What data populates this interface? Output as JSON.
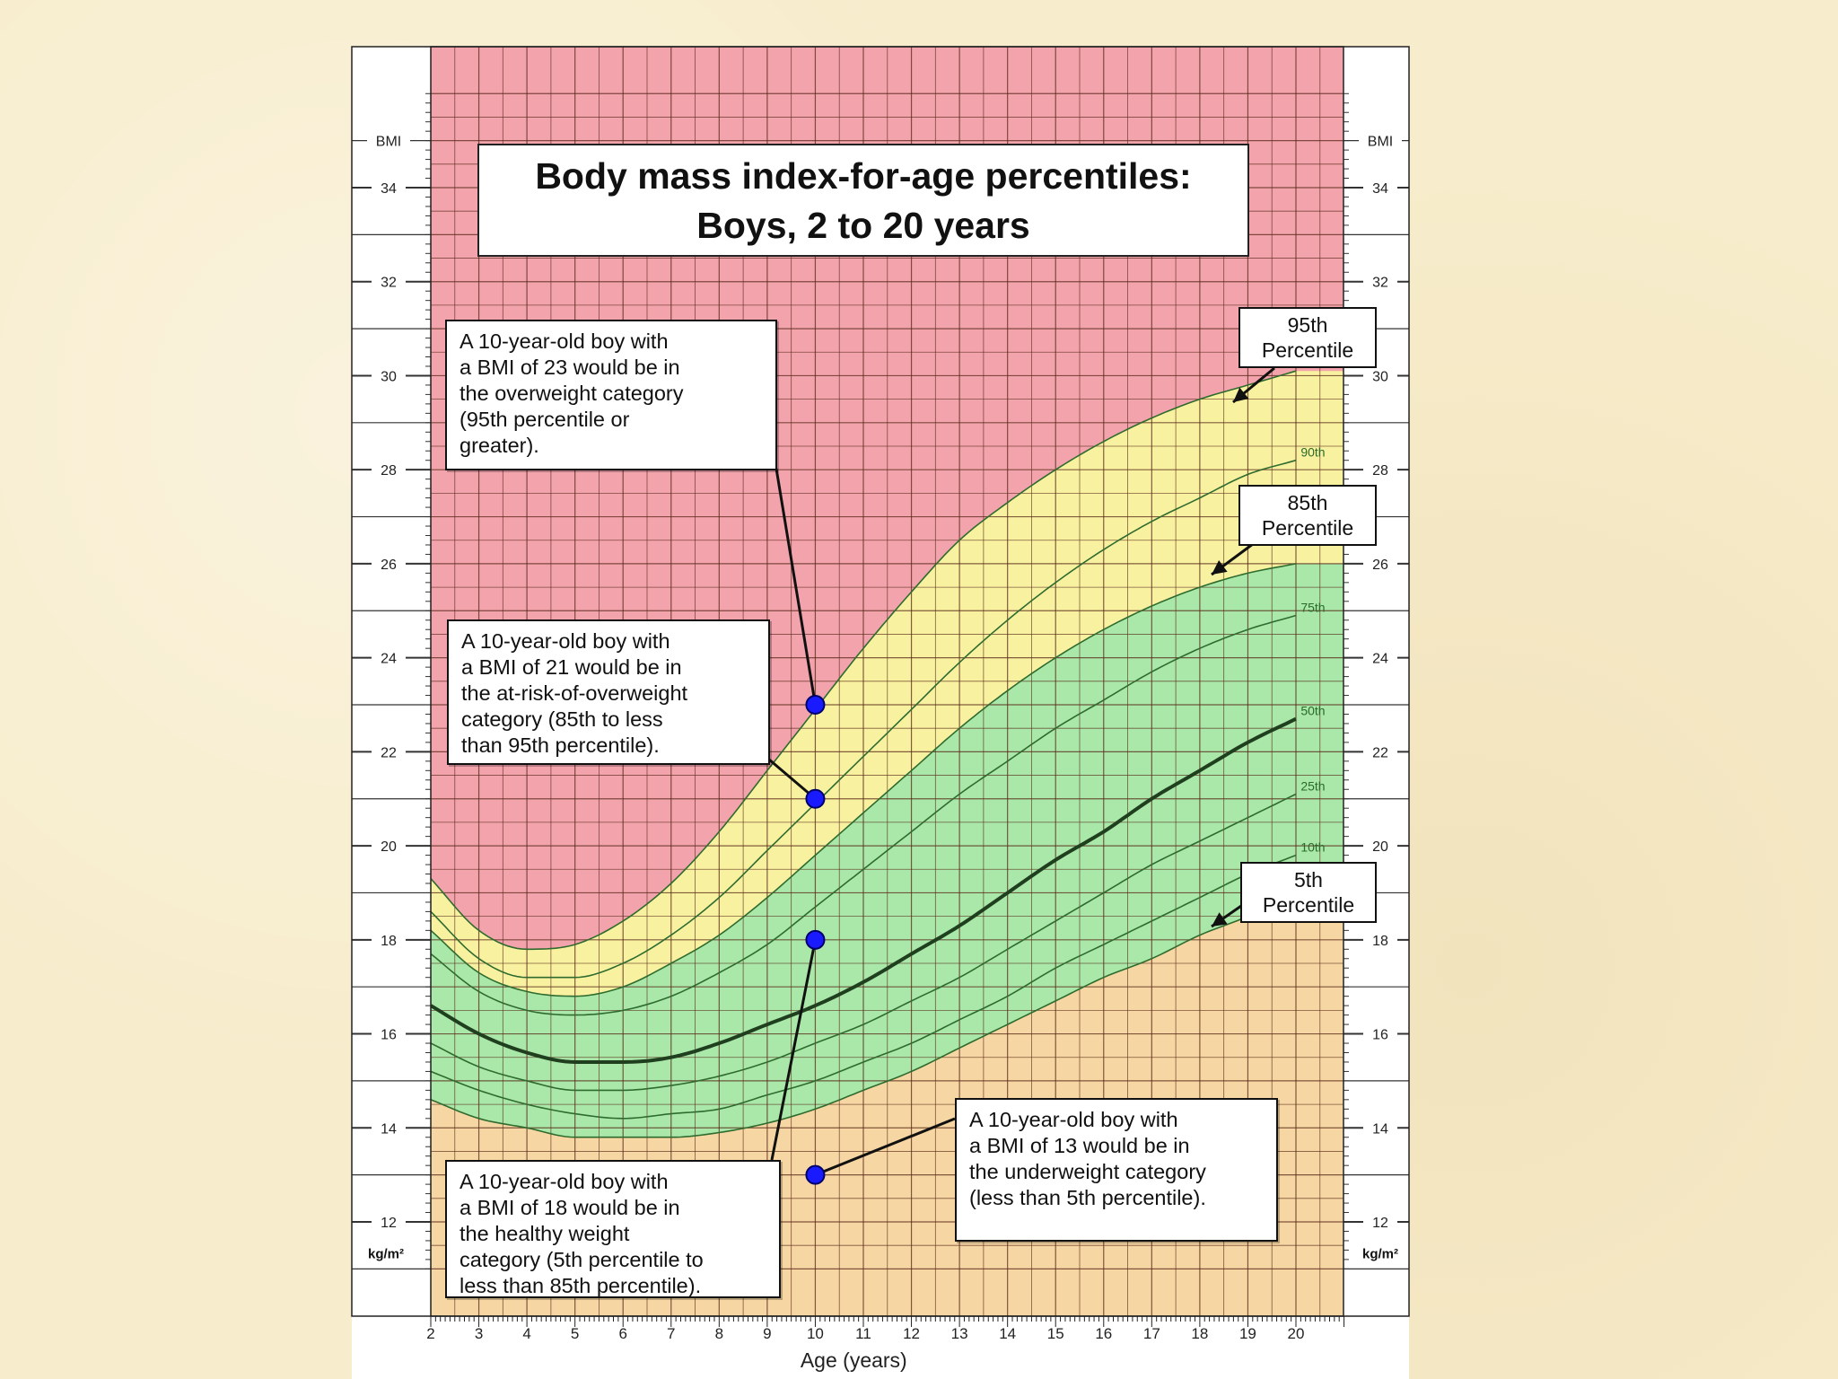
{
  "chart_data": {
    "type": "line",
    "title": "Body mass index-for-age percentiles:",
    "subtitle": "Boys, 2 to 20 years",
    "xlabel": "Age (years)",
    "ylabel": "BMI",
    "yunit": "kg/m²",
    "xlim": [
      2,
      21
    ],
    "ylim": [
      11,
      36
    ],
    "xticks": [
      2,
      3,
      4,
      5,
      6,
      7,
      8,
      9,
      10,
      11,
      12,
      13,
      14,
      15,
      16,
      17,
      18,
      19,
      20
    ],
    "yticks": [
      12,
      14,
      16,
      18,
      20,
      22,
      24,
      26,
      28,
      30,
      32,
      34
    ],
    "grid": true,
    "x": [
      2,
      3,
      4,
      5,
      6,
      7,
      8,
      9,
      10,
      11,
      12,
      13,
      14,
      15,
      16,
      17,
      18,
      19,
      20
    ],
    "series": [
      {
        "name": "95th",
        "values": [
          19.3,
          18.2,
          17.8,
          17.9,
          18.4,
          19.2,
          20.3,
          21.6,
          22.9,
          24.2,
          25.4,
          26.5,
          27.3,
          28.0,
          28.6,
          29.1,
          29.5,
          29.8,
          30.1
        ]
      },
      {
        "name": "90th",
        "values": [
          18.6,
          17.6,
          17.2,
          17.2,
          17.5,
          18.1,
          18.9,
          19.9,
          20.9,
          21.9,
          22.9,
          23.9,
          24.8,
          25.6,
          26.3,
          26.9,
          27.4,
          27.9,
          28.2
        ]
      },
      {
        "name": "85th",
        "values": [
          18.2,
          17.3,
          16.9,
          16.8,
          17.0,
          17.5,
          18.1,
          18.9,
          19.8,
          20.7,
          21.6,
          22.5,
          23.3,
          24.0,
          24.6,
          25.1,
          25.5,
          25.8,
          26.0
        ]
      },
      {
        "name": "75th",
        "values": [
          17.7,
          16.9,
          16.5,
          16.4,
          16.5,
          16.8,
          17.3,
          17.9,
          18.7,
          19.5,
          20.3,
          21.1,
          21.8,
          22.5,
          23.1,
          23.7,
          24.2,
          24.6,
          24.9
        ]
      },
      {
        "name": "50th",
        "values": [
          16.6,
          16.0,
          15.6,
          15.4,
          15.4,
          15.5,
          15.8,
          16.2,
          16.6,
          17.1,
          17.7,
          18.3,
          19.0,
          19.7,
          20.3,
          21.0,
          21.6,
          22.2,
          22.7
        ]
      },
      {
        "name": "25th",
        "values": [
          15.8,
          15.3,
          15.0,
          14.8,
          14.8,
          14.9,
          15.1,
          15.4,
          15.8,
          16.2,
          16.7,
          17.2,
          17.8,
          18.4,
          19.0,
          19.6,
          20.1,
          20.6,
          21.1
        ]
      },
      {
        "name": "10th",
        "values": [
          15.2,
          14.8,
          14.5,
          14.3,
          14.2,
          14.3,
          14.4,
          14.7,
          15.0,
          15.4,
          15.8,
          16.3,
          16.8,
          17.4,
          17.9,
          18.4,
          18.9,
          19.4,
          19.8
        ]
      },
      {
        "name": "5th",
        "values": [
          14.6,
          14.2,
          14.0,
          13.8,
          13.8,
          13.8,
          13.9,
          14.1,
          14.4,
          14.8,
          15.2,
          15.7,
          16.2,
          16.7,
          17.2,
          17.6,
          18.1,
          18.5,
          19.0
        ]
      }
    ],
    "curve_labels": [
      "90th",
      "75th",
      "50th",
      "25th",
      "10th"
    ],
    "zones": [
      {
        "name": "overweight",
        "color": "#f2a3ac"
      },
      {
        "name": "at-risk",
        "color": "#f8f2a0"
      },
      {
        "name": "healthy",
        "color": "#a9e8a8"
      },
      {
        "name": "underweight",
        "color": "#f6d6a2"
      }
    ],
    "points": [
      {
        "x": 10,
        "y": 23
      },
      {
        "x": 10,
        "y": 21
      },
      {
        "x": 10,
        "y": 18
      },
      {
        "x": 10,
        "y": 13
      }
    ]
  },
  "axis_labels": {
    "bmi_top_left": "BMI",
    "bmi_top_right": "BMI",
    "unit_left": "kg/m²",
    "unit_right": "kg/m²"
  },
  "percentile_labels": {
    "p95": [
      "95th",
      "Percentile"
    ],
    "p85": [
      "85th",
      "Percentile"
    ],
    "p5": [
      "5th",
      "Percentile"
    ]
  },
  "notes": {
    "overweight": "A 10-year-old boy with\na BMI of 23 would be in\nthe overweight category\n(95th percentile or\ngreater).",
    "at_risk": "A 10-year-old boy with\na BMI of 21 would be in\nthe at-risk-of-overweight\ncategory (85th to less\nthan 95th percentile).",
    "healthy": "A 10-year-old boy with\na BMI of 18 would be in\nthe healthy weight\ncategory (5th percentile to\nless than 85th percentile).",
    "underweight": "A 10-year-old boy with\na BMI of 13 would be in\nthe underweight category\n(less than 5th percentile)."
  },
  "colors": {
    "grid": "#5a2a1a",
    "curve": "#2f6b2f",
    "median": "#1f3f1f",
    "point": "#1a1aff"
  }
}
